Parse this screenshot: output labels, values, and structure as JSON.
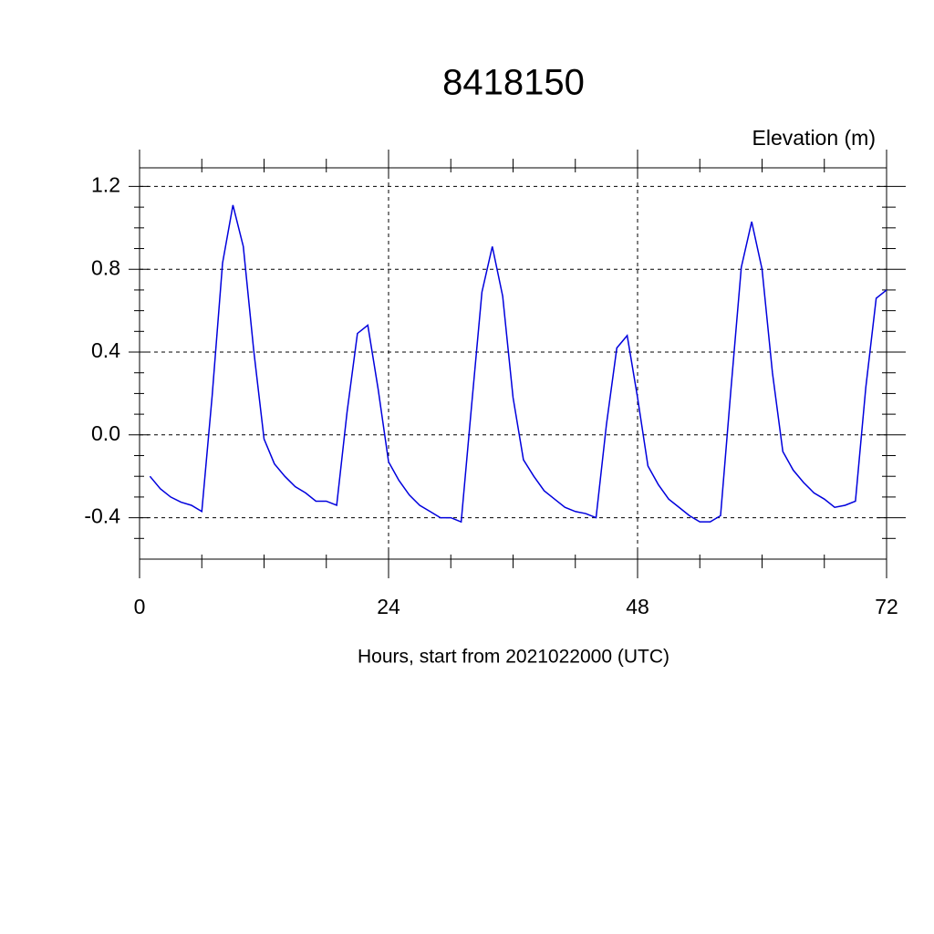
{
  "chart_data": {
    "type": "line",
    "title": "8418150",
    "subtitle": "Elevation (m)",
    "x_label": "Hours, start from 2021022000 (UTC)",
    "x": [
      1,
      2,
      3,
      4,
      5,
      6,
      7,
      8,
      9,
      10,
      11,
      12,
      13,
      14,
      15,
      16,
      17,
      18,
      19,
      20,
      21,
      22,
      23,
      24,
      25,
      26,
      27,
      28,
      29,
      30,
      31,
      32,
      33,
      34,
      35,
      36,
      37,
      38,
      39,
      40,
      41,
      42,
      43,
      44,
      45,
      46,
      47,
      48,
      49,
      50,
      51,
      52,
      53,
      54,
      55,
      56,
      57,
      58,
      59,
      60,
      61,
      62,
      63,
      64,
      65,
      66,
      67,
      68,
      69,
      70,
      71,
      72
    ],
    "series": [
      {
        "color": "#0000dd",
        "values": [
          -0.2,
          -0.26,
          -0.3,
          -0.325,
          -0.34,
          -0.37,
          0.19,
          0.83,
          1.11,
          0.91,
          0.41,
          -0.02,
          -0.14,
          -0.2,
          -0.25,
          -0.28,
          -0.32,
          -0.32,
          -0.34,
          0.11,
          0.49,
          0.53,
          0.22,
          -0.13,
          -0.22,
          -0.29,
          -0.34,
          -0.37,
          -0.4,
          -0.4,
          -0.42,
          0.14,
          0.69,
          0.91,
          0.67,
          0.18,
          -0.12,
          -0.2,
          -0.27,
          -0.31,
          -0.35,
          -0.37,
          -0.38,
          -0.4,
          0.05,
          0.42,
          0.48,
          0.18,
          -0.15,
          -0.24,
          -0.31,
          -0.35,
          -0.39,
          -0.42,
          -0.42,
          -0.39,
          0.22,
          0.81,
          1.03,
          0.8,
          0.3,
          -0.08,
          -0.17,
          -0.23,
          -0.28,
          -0.31,
          -0.35,
          -0.34,
          -0.32,
          0.23,
          0.66,
          0.7
        ]
      }
    ],
    "xlim": [
      0,
      72
    ],
    "ylim": [
      -0.6,
      1.29
    ],
    "xticks": [
      0,
      24,
      48,
      72
    ],
    "yticks": [
      -0.4,
      {
        "value": 0,
        "label": "0.0"
      },
      0.4,
      0.8,
      1.2
    ],
    "xminorticks": [
      6,
      12,
      18,
      30,
      36,
      42,
      54,
      60,
      66
    ],
    "yminorticks": [
      -0.5,
      -0.3,
      -0.2,
      -0.1,
      0.1,
      0.2,
      0.3,
      0.5,
      0.6,
      0.7,
      0.9,
      1.0,
      1.1
    ],
    "grid": true
  }
}
